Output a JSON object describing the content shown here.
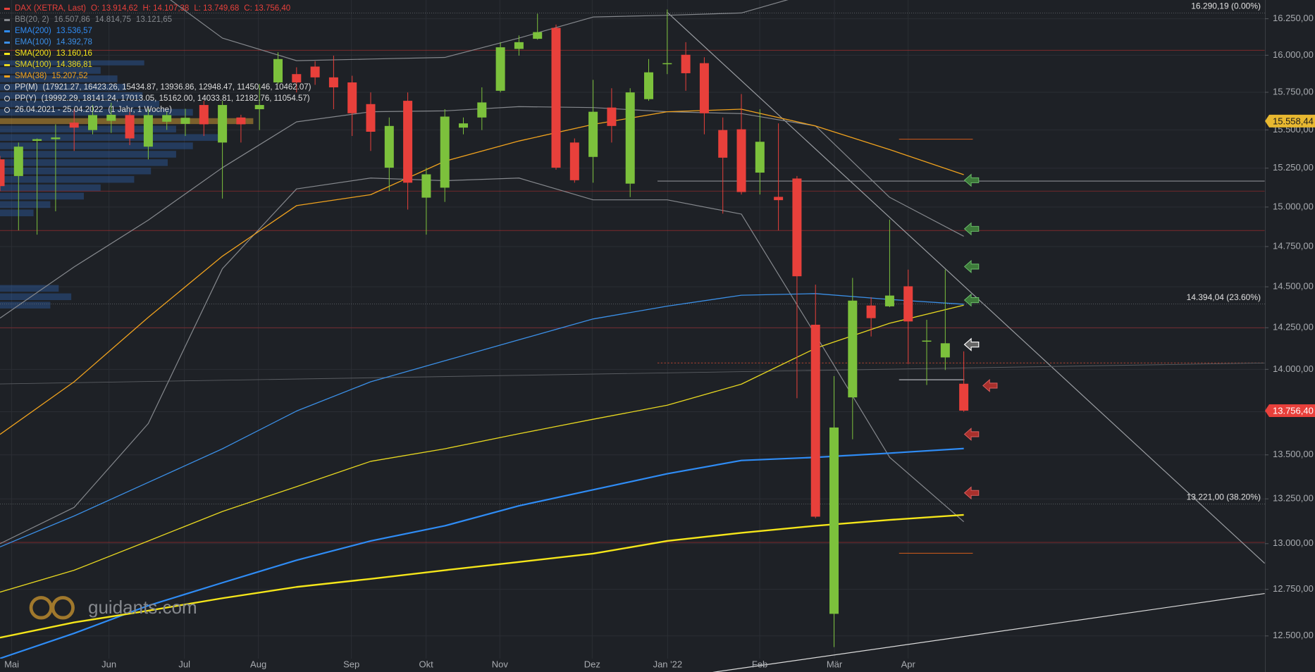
{
  "chart_data": {
    "type": "candlestick",
    "log_scale": true,
    "grid": true,
    "x": [
      0,
      1,
      2,
      3,
      4,
      5,
      6,
      7,
      8,
      9,
      10,
      11,
      12,
      13,
      14,
      15,
      16,
      17,
      18,
      19,
      20,
      21,
      22,
      23,
      24,
      25,
      26,
      27,
      28,
      29,
      30,
      31,
      32,
      33,
      34,
      35,
      36,
      37,
      38,
      39,
      40,
      41,
      42,
      43,
      44,
      45,
      46,
      47,
      48,
      49,
      50,
      51,
      52
    ],
    "xlim": [
      0,
      68.25
    ],
    "xticks": [
      {
        "value": 0.63,
        "label": "Mai"
      },
      {
        "value": 5.88,
        "label": "Jun"
      },
      {
        "value": 9.95,
        "label": "Jul"
      },
      {
        "value": 13.94,
        "label": "Aug"
      },
      {
        "value": 18.96,
        "label": "Sep"
      },
      {
        "value": 22.99,
        "label": "Okt"
      },
      {
        "value": 26.97,
        "label": "Nov"
      },
      {
        "value": 31.95,
        "label": "Dez"
      },
      {
        "value": 36.02,
        "label": "Jan '22"
      },
      {
        "value": 40.99,
        "label": "Feb"
      },
      {
        "value": 45.02,
        "label": "Mär"
      },
      {
        "value": 49.0,
        "label": "Apr"
      }
    ],
    "ylim": [
      12380,
      16380
    ],
    "yticks": [
      {
        "value": 12500,
        "label": "12.500,00"
      },
      {
        "value": 12750,
        "label": "12.750,00"
      },
      {
        "value": 13000,
        "label": "13.000,00"
      },
      {
        "value": 13250,
        "label": "13.250,00"
      },
      {
        "value": 13500,
        "label": "13.500,00"
      },
      {
        "value": 13750,
        "label": "13.750,00"
      },
      {
        "value": 14000,
        "label": "14.000,00"
      },
      {
        "value": 14250,
        "label": "14.250,00"
      },
      {
        "value": 14500,
        "label": "14.500,00"
      },
      {
        "value": 14750,
        "label": "14.750,00"
      },
      {
        "value": 15000,
        "label": "15.000,00"
      },
      {
        "value": 15250,
        "label": "15.250,00"
      },
      {
        "value": 15500,
        "label": "15.500,00"
      },
      {
        "value": 15750,
        "label": "15.750,00"
      },
      {
        "value": 16000,
        "label": "16.000,00"
      },
      {
        "value": 16250,
        "label": "16.250,00"
      }
    ],
    "ohlc": {
      "name": "DAX (XETRA, Last)",
      "up_color": "#7cc13c",
      "down_color": "#e8403b",
      "labels": [
        "O: 13.914,62",
        "H: 14.107,38",
        "L: 13.749,68",
        "C: 13.756,40"
      ],
      "open": [
        15307,
        15199,
        15428,
        15439,
        15548,
        15499,
        15560,
        15598,
        15390,
        15554,
        15540,
        15665,
        15417,
        15582,
        15637,
        15816,
        15872,
        15923,
        15850,
        15816,
        15671,
        15253,
        15693,
        15060,
        15124,
        15515,
        15582,
        15760,
        16043,
        16112,
        16187,
        15417,
        15323,
        15648,
        15150,
        15704,
        15940,
        16003,
        15946,
        15499,
        15504,
        15221,
        15065,
        15183,
        14268,
        12618,
        13834,
        14385,
        14380,
        14503,
        14166,
        14071,
        13914.62
      ],
      "high": [
        15329,
        15417,
        15444,
        15537,
        15637,
        15665,
        15680,
        15640,
        15640,
        15620,
        15640,
        15693,
        15693,
        15600,
        15805,
        16020,
        15918,
        15960,
        15997,
        15861,
        15749,
        15582,
        15749,
        15253,
        15637,
        15582,
        15783,
        16089,
        16135,
        16285,
        16210,
        15444,
        15833,
        15777,
        15777,
        15974,
        16314,
        16089,
        15986,
        15582,
        15738,
        15637,
        15543,
        15199,
        14513,
        13960,
        14555,
        14436,
        14920,
        14606,
        14298,
        14606,
        14107.38
      ],
      "low": [
        15102,
        14852,
        14825,
        14973,
        15362,
        15471,
        15480,
        15400,
        15307,
        15500,
        15460,
        15460,
        15054,
        15417,
        15499,
        15805,
        15749,
        15800,
        15637,
        15460,
        15362,
        15102,
        14984,
        14825,
        15033,
        15471,
        15499,
        15749,
        15997,
        16106,
        15240,
        15156,
        15156,
        15417,
        15064,
        15693,
        15872,
        15760,
        15471,
        14958,
        15080,
        15080,
        14852,
        13829,
        13141,
        12441,
        13590,
        14197,
        14375,
        14031,
        13907,
        13996,
        13749.68
      ],
      "close": [
        15134,
        15390,
        15439,
        15450,
        15515,
        15598,
        15600,
        15444,
        15598,
        15598,
        15580,
        15537,
        15665,
        15537,
        15665,
        15974,
        15816,
        15850,
        15783,
        15610,
        15488,
        15526,
        15156,
        15210,
        15588,
        15543,
        15682,
        16054,
        16089,
        16158,
        15253,
        15172,
        15620,
        15526,
        15749,
        15884,
        15946,
        15878,
        15610,
        15318,
        15096,
        15422,
        15044,
        14565,
        13150,
        13658,
        14415,
        14308,
        14446,
        14288,
        14172,
        14156,
        13756.4
      ]
    },
    "bollinger": {
      "name": "BB(20, 2)",
      "color": "#85888d",
      "labels": [
        "16.507,86",
        "14.814,75",
        "13.121,65"
      ],
      "x": [
        0,
        4,
        8,
        12,
        16,
        20,
        24,
        28,
        32,
        36,
        40,
        44,
        48,
        52
      ],
      "upper": [
        17094,
        16851,
        16495,
        16117,
        15963,
        15974,
        15985,
        16117,
        16262,
        16274,
        16290,
        16437,
        16495,
        16507.86
      ],
      "middle": [
        14308,
        14623,
        14917,
        15253,
        15553,
        15620,
        15626,
        15654,
        15648,
        15620,
        15608,
        15526,
        15062,
        14814.75
      ],
      "lower": [
        13000,
        13202,
        13681,
        14612,
        15116,
        15186,
        15169,
        15186,
        15046,
        15046,
        14955,
        14207,
        13486,
        13121.65
      ]
    },
    "overlays": [
      {
        "name": "EMA(200)",
        "color": "#2f8cf5",
        "last_label": "13.536,57",
        "x": [
          0,
          4,
          8,
          12,
          16,
          20,
          24,
          28,
          32,
          36,
          40,
          44,
          48,
          52
        ],
        "values": [
          12381,
          12514,
          12662,
          12786,
          12909,
          13015,
          13099,
          13211,
          13301,
          13392,
          13468,
          13486,
          13510,
          13536.57
        ]
      },
      {
        "name": "EMA(100)",
        "color": "#3b8fe6",
        "last_label": "14.392,78",
        "x": [
          0,
          4,
          8,
          12,
          16,
          20,
          24,
          28,
          32,
          36,
          40,
          44,
          48,
          52
        ],
        "values": [
          12982,
          13154,
          13343,
          13535,
          13754,
          13926,
          14051,
          14177,
          14303,
          14381,
          14448,
          14458,
          14422,
          14392.78
        ]
      },
      {
        "name": "SMA(200)",
        "color": "#f5e61a",
        "last_label": "13.160,16",
        "x": [
          0,
          4,
          8,
          12,
          16,
          20,
          24,
          28,
          32,
          36,
          40,
          44,
          48,
          52
        ],
        "values": [
          12491,
          12572,
          12635,
          12702,
          12763,
          12807,
          12854,
          12899,
          12945,
          13015,
          13060,
          13099,
          13132,
          13160.16
        ]
      },
      {
        "name": "SMA(100)",
        "color": "#e8d820",
        "last_label": "14.386,81",
        "x": [
          0,
          4,
          8,
          12,
          16,
          20,
          24,
          28,
          32,
          36,
          40,
          44,
          48,
          52
        ],
        "values": [
          12735,
          12854,
          13015,
          13179,
          13319,
          13463,
          13535,
          13622,
          13706,
          13788,
          13912,
          14126,
          14277,
          14386.81
        ]
      },
      {
        "name": "SMA(38)",
        "color": "#f0a21e",
        "last_label": "15.207,52",
        "x": [
          0,
          4,
          8,
          12,
          16,
          20,
          24,
          28,
          32,
          36,
          40,
          44,
          48,
          52
        ],
        "values": [
          13618,
          13926,
          14313,
          14690,
          15009,
          15079,
          15295,
          15427,
          15536,
          15620,
          15637,
          15526,
          15371,
          15207.52
        ]
      }
    ],
    "pivots": [
      {
        "name": "PP(M)",
        "levels": "(17921.27, 16423.26, 15434.87, 13936.86, 12948.47, 11450.46, 10462.07)"
      },
      {
        "name": "PP(Y)",
        "levels": "(19992.29, 18141.24, 17013.05, 15162.00, 14033.81, 12182.76, 11054.57)"
      }
    ],
    "period": "26.04.2021 - 25.04.2022",
    "period_note": "(1 Jahr, 1 Woche)",
    "fib_levels": [
      {
        "value": 16290.19,
        "label": "16.290,19 (0.00%)"
      },
      {
        "value": 14394.04,
        "label": "14.394,04 (23.60%)"
      },
      {
        "value": 13221.0,
        "label": "13.221,00 (38.20%)"
      }
    ],
    "price_markers": [
      {
        "value": 15558.44,
        "label": "15.558,44",
        "color": "#e8b830"
      },
      {
        "value": 13756.4,
        "label": "13.756,40",
        "color": "#e8403b"
      }
    ],
    "watermark": "guidants.com"
  }
}
